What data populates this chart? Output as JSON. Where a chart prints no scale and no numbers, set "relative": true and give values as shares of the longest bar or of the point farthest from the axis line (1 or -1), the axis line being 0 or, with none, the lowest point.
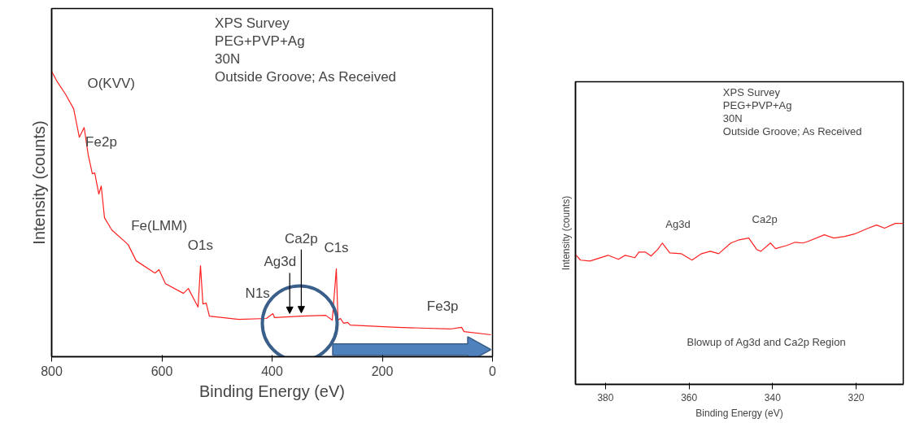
{
  "chart_data": [
    {
      "type": "line",
      "relative": true,
      "xlabel": "Binding Energy (eV)",
      "ylabel": "Intensity (counts)",
      "xlim": [
        800,
        0
      ],
      "xticks": [
        800,
        600,
        400,
        200,
        0
      ],
      "grid": false,
      "x": [
        800,
        789.7,
        774.9,
        760.1,
        749.8,
        741.0,
        733.6,
        726.2,
        721.8,
        714.4,
        710.0,
        704.1,
        690.8,
        661.3,
        646.5,
        612.5,
        605.2,
        593.4,
        560.9,
        552.0,
        534.3,
        529.9,
        525.5,
        519.6,
        513.7,
        460.5,
        410.3,
        398.5,
        395.6,
        346.9,
        302.6,
        290.8,
        283.4,
        280.4,
        276.0,
        270.1,
        262.7,
        258.3,
        174.2,
        76.8,
        56.1,
        51.7,
        3.0
      ],
      "series": [
        {
          "color": "#ff2020",
          "values": [
            1.0,
            0.963,
            0.92,
            0.869,
            0.769,
            0.803,
            0.707,
            0.641,
            0.644,
            0.57,
            0.598,
            0.487,
            0.444,
            0.393,
            0.336,
            0.293,
            0.305,
            0.256,
            0.222,
            0.239,
            0.174,
            0.319,
            0.185,
            0.188,
            0.142,
            0.131,
            0.134,
            0.151,
            0.137,
            0.142,
            0.145,
            0.128,
            0.308,
            0.128,
            0.134,
            0.117,
            0.12,
            0.111,
            0.103,
            0.097,
            0.103,
            0.088,
            0.077
          ]
        }
      ],
      "annotations": [
        "XPS Survey",
        "PEG+PVP+Ag",
        "30N",
        "Outside Groove; As Received",
        {
          "text": "O(KVV)",
          "x": 741,
          "y": 0.803
        },
        {
          "text": "Fe2p",
          "x": 710,
          "y": 0.598
        },
        {
          "text": "Fe(LMM)",
          "x": 605,
          "y": 0.305
        },
        {
          "text": "O1s",
          "x": 530,
          "y": 0.319
        },
        {
          "text": "N1s",
          "x": 398,
          "y": 0.151
        },
        {
          "text": "Ag3d",
          "x": 368,
          "y": 0.14
        },
        {
          "text": "Ca2p",
          "x": 347,
          "y": 0.142
        },
        {
          "text": "C1s",
          "x": 283.4,
          "y": 0.308
        },
        {
          "text": "Fe3p",
          "x": 56,
          "y": 0.103
        }
      ]
    },
    {
      "type": "line",
      "relative": true,
      "xlabel": "Binding Energy (eV)",
      "ylabel": "Intensity (counts)",
      "xlim": [
        387.2,
        308.7
      ],
      "xticks": [
        380,
        360,
        340,
        320
      ],
      "grid": false,
      "x": [
        387.2,
        386.0,
        383.7,
        379.4,
        376.9,
        375.3,
        373.0,
        372.0,
        370.5,
        369.1,
        367.5,
        366.4,
        364.6,
        361.9,
        359.3,
        357.0,
        354.9,
        352.9,
        350.0,
        348.0,
        345.7,
        343.8,
        342.8,
        340.5,
        339.3,
        336.6,
        334.6,
        332.7,
        331.5,
        327.6,
        325.3,
        322.7,
        320.4,
        317.1,
        315.1,
        313.2,
        310.6,
        308.7
      ],
      "series": [
        {
          "color": "#ff2020",
          "values": [
            0.807,
            0.772,
            0.766,
            0.802,
            0.777,
            0.802,
            0.787,
            0.822,
            0.822,
            0.797,
            0.838,
            0.878,
            0.817,
            0.812,
            0.772,
            0.812,
            0.827,
            0.812,
            0.878,
            0.898,
            0.909,
            0.838,
            0.827,
            0.878,
            0.843,
            0.863,
            0.883,
            0.878,
            0.888,
            0.929,
            0.909,
            0.919,
            0.934,
            0.97,
            0.99,
            0.97,
            1.0,
            1.0
          ]
        }
      ],
      "annotations": [
        "XPS Survey",
        "PEG+PVP+Ag",
        "30N",
        "Outside Groove; As Received",
        "Blowup of Ag3d and Ca2p Region",
        {
          "text": "Ag3d",
          "x": 366.4,
          "y": 0.878
        },
        {
          "text": "Ca2p",
          "x": 345.7,
          "y": 0.909
        }
      ]
    }
  ]
}
